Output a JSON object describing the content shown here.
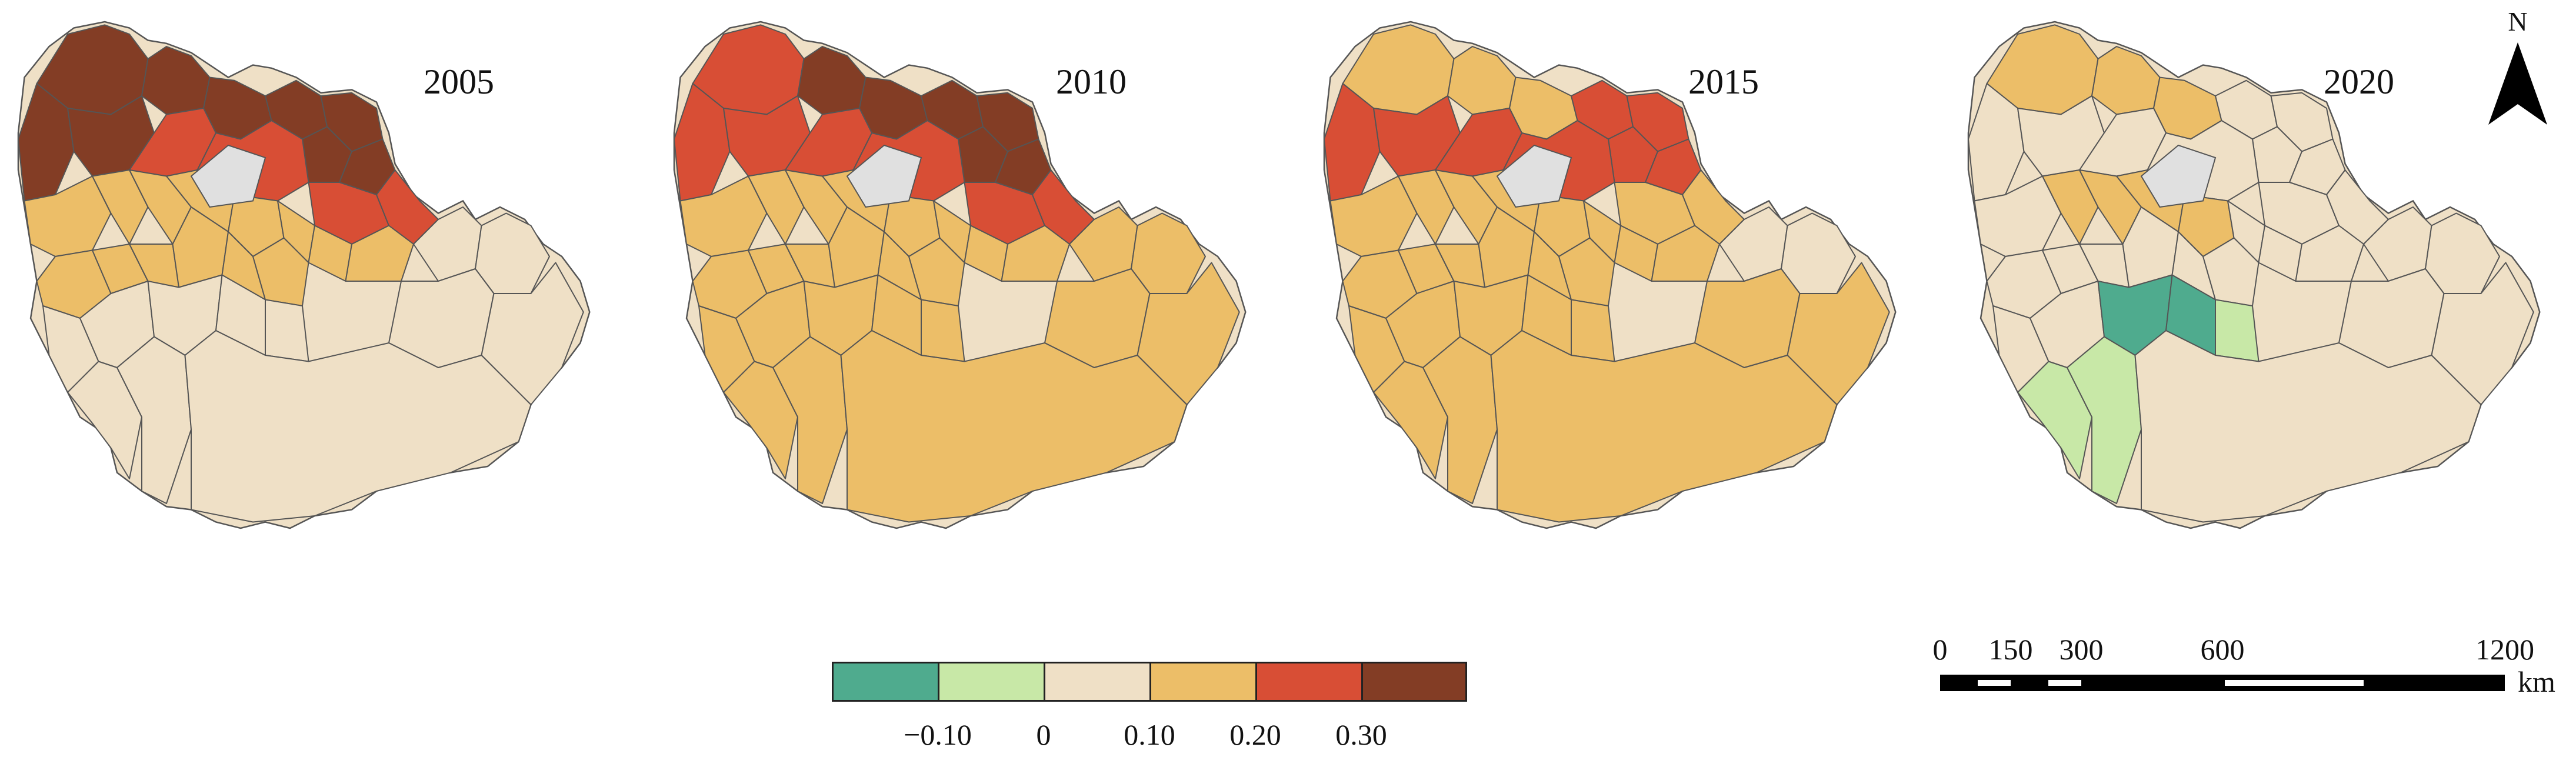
{
  "panels": [
    {
      "year": "2005",
      "region_classes": [
        5,
        5,
        5,
        5,
        5,
        5,
        5,
        5,
        5,
        4,
        4,
        4,
        4,
        3,
        3,
        3,
        3,
        3,
        3,
        3,
        3,
        3,
        3,
        3,
        3,
        3,
        3,
        2,
        2,
        2,
        2,
        2,
        2,
        2,
        2,
        2,
        2,
        2,
        2
      ],
      "no_data_regions": 1
    },
    {
      "year": "2010",
      "region_classes": [
        4,
        5,
        5,
        5,
        5,
        5,
        5,
        4,
        4,
        4,
        4,
        4,
        4,
        3,
        3,
        3,
        3,
        3,
        3,
        3,
        3,
        3,
        3,
        3,
        3,
        3,
        3,
        3,
        3,
        3,
        3,
        3,
        3,
        3,
        3,
        3,
        3,
        3,
        3
      ],
      "no_data_regions": 1
    },
    {
      "year": "2015",
      "region_classes": [
        3,
        3,
        3,
        4,
        4,
        4,
        4,
        4,
        4,
        4,
        4,
        3,
        3,
        3,
        3,
        3,
        3,
        3,
        3,
        3,
        3,
        3,
        3,
        3,
        3,
        3,
        3,
        3,
        3,
        3,
        3,
        3,
        3,
        3,
        2,
        2,
        3,
        3,
        3
      ],
      "no_data_regions": 1
    },
    {
      "year": "2020",
      "region_classes": [
        3,
        3,
        3,
        2,
        2,
        2,
        2,
        2,
        2,
        2,
        2,
        2,
        2,
        2,
        3,
        3,
        3,
        3,
        2,
        2,
        2,
        2,
        2,
        2,
        2,
        2,
        2,
        2,
        2,
        0,
        0,
        1,
        1,
        1,
        2,
        2,
        2,
        2,
        2
      ],
      "no_data_regions": 1
    }
  ],
  "legend": {
    "classes": [
      {
        "color": "#4fab8e"
      },
      {
        "color": "#c8e8a7"
      },
      {
        "color": "#efe0c6"
      },
      {
        "color": "#ecbe68"
      },
      {
        "color": "#d84e35"
      },
      {
        "color": "#833d25"
      }
    ],
    "break_labels": [
      "−0.10",
      "0",
      "0.10",
      "0.20",
      "0.30"
    ],
    "no_data_color": "#e0e0e0"
  },
  "scale_bar": {
    "labels": [
      "0",
      "150",
      "300",
      "600",
      "1200"
    ],
    "distances": [
      0,
      150,
      300,
      600,
      1200
    ],
    "unit": "km"
  },
  "north_arrow": {
    "label": "N"
  }
}
